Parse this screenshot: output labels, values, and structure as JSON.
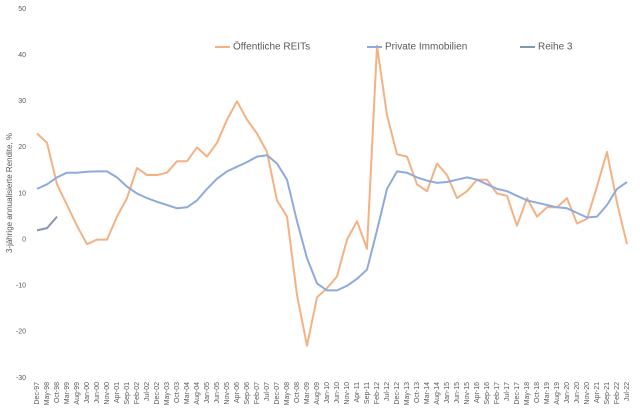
{
  "chart_data": {
    "type": "line",
    "ylabel": "3-jährige annualisierte Rendite, %",
    "categories": [
      "Dec-97",
      "May-98",
      "Oct-98",
      "Mar-99",
      "Aug-99",
      "Jan-00",
      "Jun-00",
      "Nov-00",
      "Apr-01",
      "Sep-01",
      "Feb-02",
      "Jul-02",
      "Dec-02",
      "May-03",
      "Oct-03",
      "Mar-04",
      "Aug-04",
      "Jan-05",
      "Jun-05",
      "Nov-05",
      "Apr-06",
      "Sep-06",
      "Feb-07",
      "Jul-07",
      "Dec-07",
      "May-08",
      "Oct-08",
      "Mar-09",
      "Aug-09",
      "Jan-10",
      "Jun-10",
      "Nov-10",
      "Apr-11",
      "Sep-11",
      "Feb-12",
      "Jul-12",
      "Dec-12",
      "May-13",
      "Oct-13",
      "Mar-14",
      "Aug-14",
      "Jan-15",
      "Jun-15",
      "Nov-15",
      "Apr-16",
      "Sep-16",
      "Feb-17",
      "Jul-17",
      "Dec-17",
      "May-18",
      "Oct-18",
      "Mar-19",
      "Aug-19",
      "Jan-20",
      "Jun-20",
      "Nov-20",
      "Apr-21",
      "Sep-21",
      "Feb-22",
      "Jul-22"
    ],
    "series": [
      {
        "name": "Öffentliche REITs",
        "color": "#f4b183",
        "values": [
          23,
          21,
          12,
          7.5,
          3,
          -1,
          0,
          0,
          5,
          9,
          15.5,
          14,
          14,
          14.5,
          17,
          17,
          20,
          18,
          21,
          26,
          30,
          26,
          23,
          19,
          8.5,
          5,
          -12,
          -23,
          -12.5,
          -10.5,
          -8,
          0,
          4,
          -2,
          42,
          27,
          18.5,
          18,
          12,
          10.5,
          16.5,
          14,
          9,
          10.5,
          13,
          13,
          10,
          9.5,
          3,
          9,
          5,
          7,
          7,
          9,
          3.5,
          4.5,
          11.5,
          19,
          8,
          -1
        ]
      },
      {
        "name": "Private Immobilien",
        "color": "#8faadc",
        "values": [
          11,
          12,
          13.5,
          14.5,
          14.5,
          14.7,
          14.8,
          14.8,
          13.5,
          11.5,
          10,
          9,
          8.2,
          7.5,
          6.8,
          7,
          8.5,
          11,
          13.2,
          14.8,
          15.8,
          16.8,
          18,
          18.3,
          16.5,
          13,
          4,
          -4,
          -9.5,
          -11,
          -11,
          -10,
          -8.5,
          -6.5,
          2,
          11,
          14.8,
          14.5,
          13.5,
          12.8,
          12.3,
          12.5,
          13,
          13.5,
          13,
          12,
          11,
          10.5,
          9.5,
          8.5,
          8,
          7.5,
          7,
          6.8,
          5.8,
          4.8,
          5,
          7.5,
          11,
          12.5
        ]
      },
      {
        "name": "Reihe 3",
        "color": "#8497b0",
        "values": [
          2,
          2.5,
          5,
          null,
          null,
          null,
          null,
          null,
          null,
          null,
          null,
          null,
          null,
          null,
          null,
          null,
          null,
          null,
          null,
          null,
          null,
          null,
          null,
          null,
          null,
          null,
          null,
          null,
          null,
          null,
          null,
          null,
          null,
          null,
          null,
          null,
          null,
          null,
          null,
          null,
          null,
          null,
          null,
          null,
          null,
          null,
          null,
          null,
          null,
          null,
          null,
          null,
          null,
          null,
          null,
          null,
          null,
          null,
          null,
          null
        ]
      }
    ],
    "ylim": [
      -30,
      50
    ],
    "yticks": [
      -30,
      -20,
      -10,
      0,
      10,
      20,
      30,
      40,
      50
    ],
    "grid": false,
    "legend": "top"
  }
}
